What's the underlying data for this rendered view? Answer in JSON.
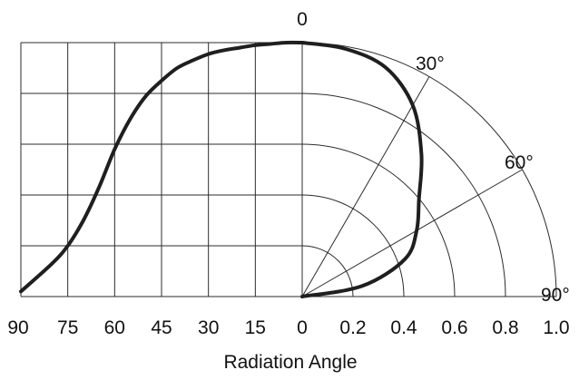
{
  "chart_data": [
    {
      "type": "line",
      "panel": "left",
      "x": [
        90,
        80,
        75,
        70,
        65,
        60,
        55,
        50,
        45,
        40,
        35,
        30,
        25,
        20,
        15,
        10,
        5,
        0
      ],
      "y": [
        0.02,
        0.13,
        0.2,
        0.3,
        0.43,
        0.58,
        0.7,
        0.79,
        0.85,
        0.9,
        0.93,
        0.955,
        0.97,
        0.98,
        0.99,
        0.995,
        1.0,
        1.0
      ],
      "xlim": [
        90,
        0
      ],
      "ylim": [
        0,
        1.0
      ],
      "xticks": [
        "90",
        "75",
        "60",
        "45",
        "30",
        "15",
        "0"
      ],
      "grid": true
    },
    {
      "type": "line",
      "panel": "right",
      "polar": true,
      "theta": [
        0,
        10,
        20,
        30,
        40,
        50,
        60,
        70,
        80,
        90
      ],
      "r": [
        1.0,
        0.99,
        0.96,
        0.87,
        0.73,
        0.6,
        0.52,
        0.43,
        0.24,
        0.0
      ],
      "rlim": [
        0,
        1.0
      ],
      "rticks": [
        "0",
        "0.2",
        "0.4",
        "0.6",
        "0.8",
        "1.0"
      ],
      "angle_labels": [
        "0",
        "30°",
        "60°",
        "90°"
      ],
      "grid": true
    }
  ],
  "xlabel": "Radiation Angle"
}
